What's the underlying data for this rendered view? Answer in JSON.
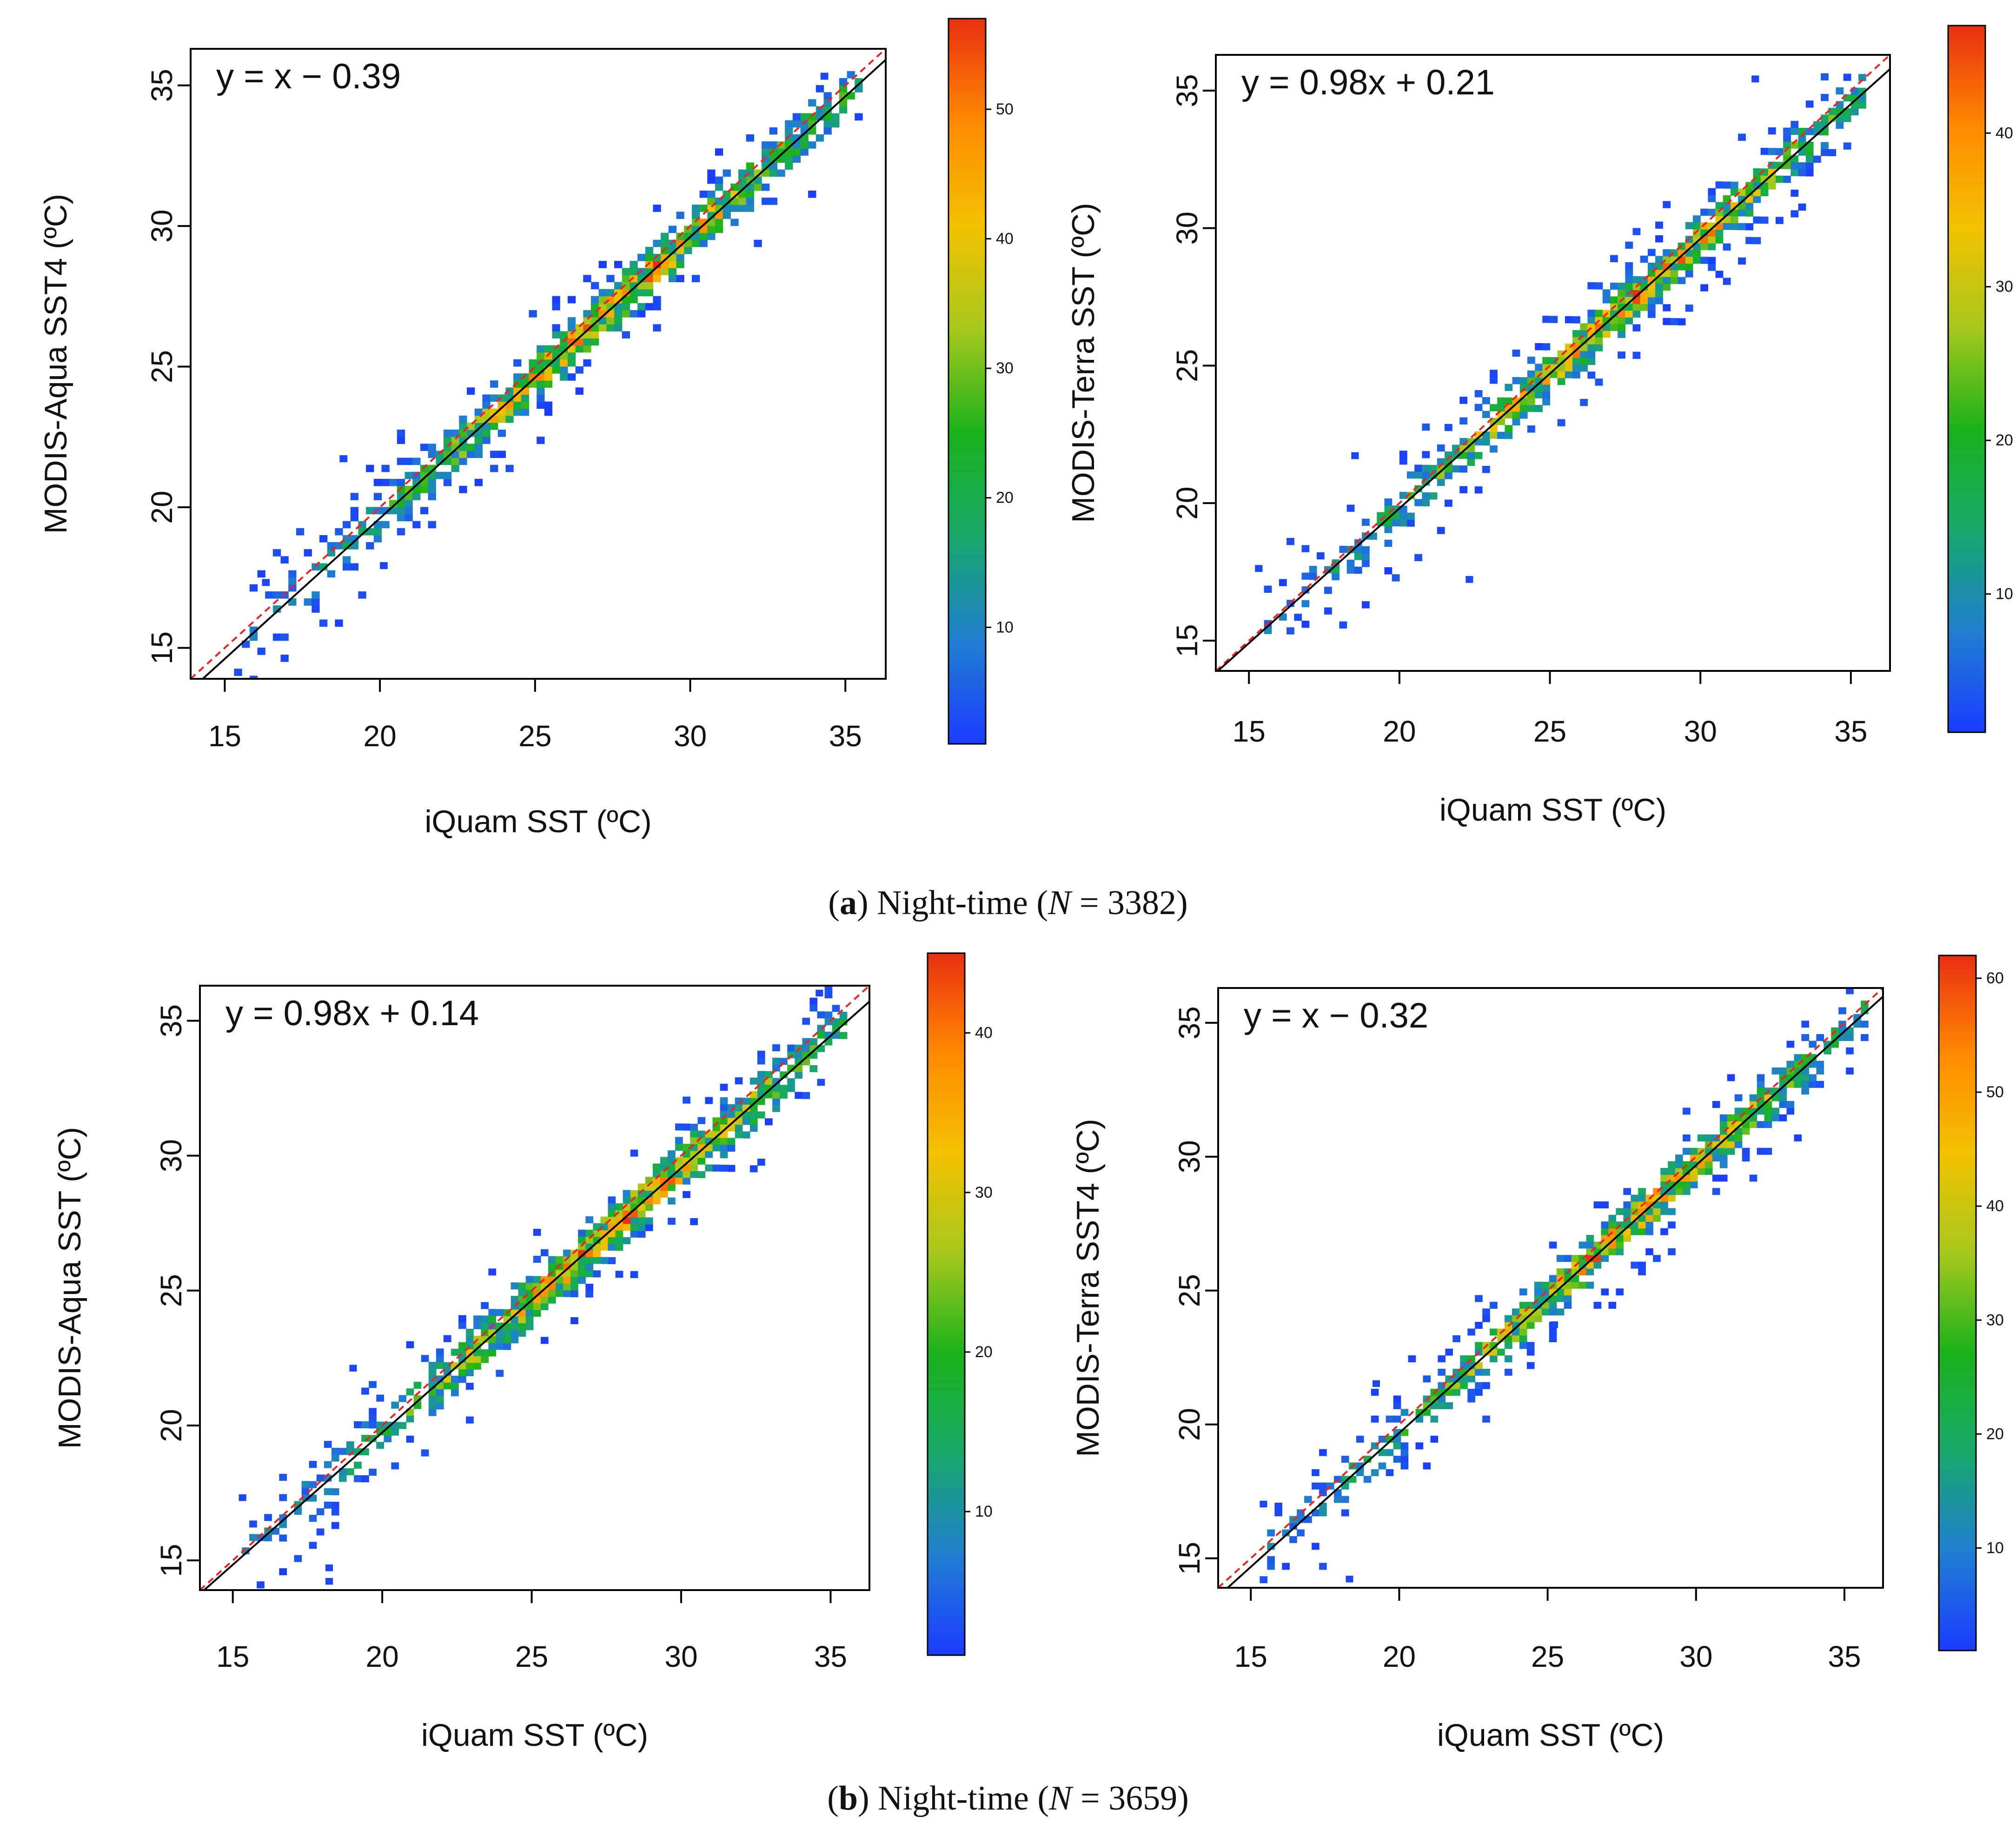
{
  "captions": [
    {
      "open": "(",
      "letter": "a",
      "close": ") Night-time (",
      "n_symbol": "N",
      "n_text": " = 3382)"
    },
    {
      "open": "(",
      "letter": "b",
      "close": ") Night-time (",
      "n_symbol": "N",
      "n_text": " = 3659)"
    }
  ],
  "colors": {
    "colormap": [
      "#1a3cff",
      "#1f7fd0",
      "#17a86a",
      "#19b21a",
      "#a6c81c",
      "#f2c200",
      "#ff8a00",
      "#e83010"
    ],
    "fit_line": "#000000",
    "one_to_one_line": "#ee2222"
  },
  "chart_data": [
    {
      "type": "heatmap",
      "panel": "a-left",
      "equation": "y = x − 0.39",
      "fit": {
        "slope": 1.0,
        "intercept": -0.39
      },
      "xlabel": "iQuam SST (ºC)",
      "ylabel": "MODIS-Aqua SST4 (ºC)",
      "xlim": [
        13.9,
        36.3
      ],
      "ylim": [
        13.9,
        36.3
      ],
      "xticks": [
        "15",
        "20",
        "25",
        "30",
        "35"
      ],
      "yticks": [
        "15",
        "20",
        "25",
        "30",
        "35"
      ],
      "colorbar": {
        "min": 1,
        "max": 57,
        "ticks": [
          "10",
          "20",
          "30",
          "40",
          "50"
        ]
      },
      "bin_size": 0.25,
      "spread": 0.55,
      "peak": 52,
      "seed": 11,
      "x_range": [
        15.3,
        35.3
      ],
      "outliers": [
        [
          18.7,
          21.6
        ],
        [
          16.2,
          17.2
        ],
        [
          34.2,
          35.2
        ],
        [
          20.0,
          17.8
        ]
      ]
    },
    {
      "type": "heatmap",
      "panel": "a-right",
      "equation": "y = 0.98x + 0.21",
      "fit": {
        "slope": 0.98,
        "intercept": 0.21
      },
      "xlabel": "iQuam SST (ºC)",
      "ylabel": "MODIS-Terra SST (ºC)",
      "xlim": [
        13.9,
        36.3
      ],
      "ylim": [
        13.9,
        36.3
      ],
      "xticks": [
        "15",
        "20",
        "25",
        "30",
        "35"
      ],
      "yticks": [
        "15",
        "20",
        "25",
        "30",
        "35"
      ],
      "colorbar": {
        "min": 1,
        "max": 47,
        "ticks": [
          "10",
          "20",
          "30",
          "40"
        ]
      },
      "bin_size": 0.25,
      "spread": 0.55,
      "peak": 44,
      "seed": 23,
      "x_range": [
        15.5,
        35.3
      ],
      "outliers": [
        [
          18.4,
          21.6
        ],
        [
          15.2,
          17.5
        ],
        [
          31.7,
          35.3
        ],
        [
          22.2,
          17.1
        ]
      ]
    },
    {
      "type": "heatmap",
      "panel": "b-left",
      "equation": "y = 0.98x + 0.14",
      "fit": {
        "slope": 0.98,
        "intercept": 0.14
      },
      "xlabel": "iQuam SST (ºC)",
      "ylabel": "MODIS-Aqua SST (ºC)",
      "xlim": [
        13.9,
        36.3
      ],
      "ylim": [
        13.9,
        36.3
      ],
      "xticks": [
        "15",
        "20",
        "25",
        "30",
        "35"
      ],
      "yticks": [
        "15",
        "20",
        "25",
        "30",
        "35"
      ],
      "colorbar": {
        "min": 1,
        "max": 45,
        "ticks": [
          "10",
          "20",
          "30",
          "40"
        ]
      },
      "bin_size": 0.25,
      "spread": 0.6,
      "peak": 42,
      "seed": 37,
      "x_range": [
        15.3,
        35.4
      ],
      "outliers": [
        [
          18.1,
          14.6
        ],
        [
          18.1,
          14.1
        ],
        [
          18.9,
          22.0
        ],
        [
          15.2,
          17.2
        ],
        [
          34.5,
          35.9
        ]
      ]
    },
    {
      "type": "heatmap",
      "panel": "b-right",
      "equation": "y = x − 0.32",
      "fit": {
        "slope": 1.0,
        "intercept": -0.32
      },
      "xlabel": "iQuam SST (ºC)",
      "ylabel": "MODIS-Terra SST4 (ºC)",
      "xlim": [
        13.9,
        36.3
      ],
      "ylim": [
        13.9,
        36.3
      ],
      "xticks": [
        "15",
        "20",
        "25",
        "30",
        "35"
      ],
      "yticks": [
        "15",
        "20",
        "25",
        "30",
        "35"
      ],
      "colorbar": {
        "min": 1,
        "max": 62,
        "ticks": [
          "10",
          "20",
          "30",
          "40",
          "50",
          "60"
        ]
      },
      "bin_size": 0.25,
      "spread": 0.55,
      "peak": 58,
      "seed": 53,
      "x_range": [
        15.3,
        35.6
      ],
      "outliers": [
        [
          18.2,
          14.1
        ],
        [
          19.1,
          21.4
        ],
        [
          15.3,
          16.9
        ],
        [
          25.1,
          23.6
        ]
      ]
    }
  ]
}
